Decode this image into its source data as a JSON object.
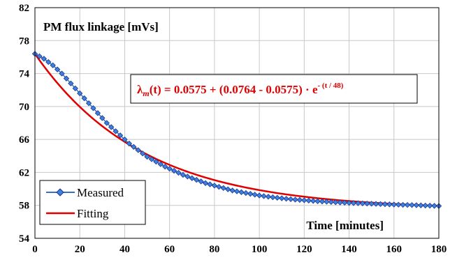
{
  "chart_data": {
    "type": "line",
    "title": "PM flux linkage [mVs]",
    "xlabel": "Time [minutes]",
    "ylabel": "",
    "xlim": [
      0,
      180
    ],
    "ylim": [
      54,
      82
    ],
    "x_ticks": [
      "0",
      "20",
      "40",
      "60",
      "80",
      "100",
      "120",
      "140",
      "160",
      "180"
    ],
    "y_ticks": [
      "54",
      "58",
      "62",
      "66",
      "70",
      "74",
      "78",
      "82"
    ],
    "grid": true,
    "legend_position": "bottom-left",
    "equation": {
      "lambda": "λ",
      "sub": "m",
      "mid": "(t) = 0.0575 + (0.0764 - 0.0575) · e",
      "exp": "- (t / 48)"
    },
    "series": [
      {
        "name": "Measured",
        "color": "#3a6fc4",
        "marker": "diamond",
        "marker_fill": "#3f7fe0",
        "marker_edge": "#1a3a8c",
        "x": [
          0,
          2,
          4,
          6,
          8,
          10,
          12,
          14,
          16,
          18,
          20,
          22,
          24,
          26,
          28,
          30,
          32,
          34,
          36,
          38,
          40,
          42,
          44,
          46,
          48,
          50,
          52,
          54,
          56,
          58,
          60,
          62,
          64,
          66,
          68,
          70,
          72,
          74,
          76,
          78,
          80,
          82,
          84,
          86,
          88,
          90,
          92,
          94,
          96,
          98,
          100,
          102,
          104,
          106,
          108,
          110,
          112,
          114,
          116,
          118,
          120,
          122,
          124,
          126,
          128,
          130,
          132,
          134,
          136,
          138,
          140,
          142,
          144,
          146,
          148,
          150,
          152,
          154,
          156,
          158,
          160,
          162,
          164,
          166,
          168,
          170,
          172,
          174,
          176,
          178,
          180
        ],
        "y": [
          76.4,
          76.1,
          75.8,
          75.4,
          75.0,
          74.5,
          74.0,
          73.4,
          72.8,
          72.2,
          71.6,
          71.0,
          70.4,
          69.8,
          69.2,
          68.6,
          68.0,
          67.5,
          67.0,
          66.5,
          66.0,
          65.5,
          65.1,
          64.7,
          64.3,
          63.9,
          63.6,
          63.3,
          63.0,
          62.7,
          62.45,
          62.2,
          61.95,
          61.7,
          61.5,
          61.3,
          61.1,
          60.9,
          60.7,
          60.55,
          60.4,
          60.25,
          60.1,
          59.95,
          59.8,
          59.7,
          59.6,
          59.5,
          59.4,
          59.3,
          59.2,
          59.12,
          59.05,
          58.98,
          58.92,
          58.86,
          58.8,
          58.75,
          58.7,
          58.66,
          58.62,
          58.58,
          58.54,
          58.5,
          58.47,
          58.44,
          58.41,
          58.38,
          58.35,
          58.33,
          58.3,
          58.28,
          58.26,
          58.24,
          58.22,
          58.2,
          58.18,
          58.16,
          58.14,
          58.12,
          58.1,
          58.08,
          58.06,
          58.05,
          58.04,
          58.02,
          58.0,
          57.98,
          57.96,
          57.94,
          57.92
        ]
      },
      {
        "name": "Fitting",
        "color": "#e00000",
        "fit_params": {
          "a": 57.5,
          "b": 76.4,
          "tau": 48
        }
      }
    ]
  }
}
